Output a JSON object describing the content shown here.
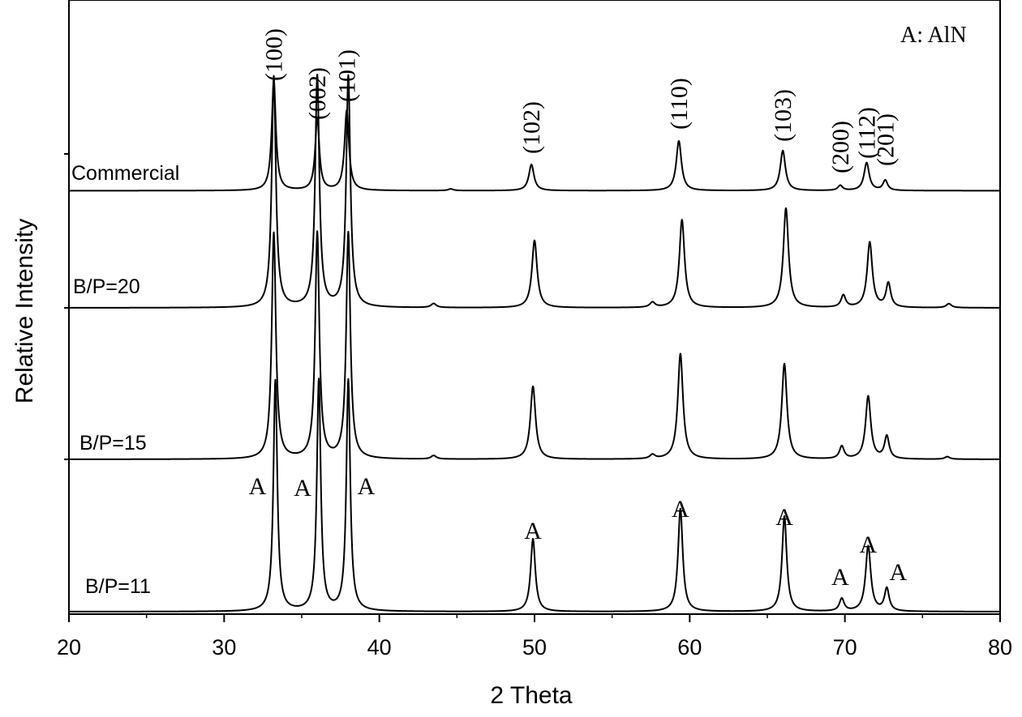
{
  "chart_data": {
    "type": "line",
    "title": "",
    "xlabel": "2 Theta",
    "ylabel": "Relative Intensity",
    "xlim": [
      20,
      80
    ],
    "x_ticks": [
      20,
      30,
      40,
      50,
      60,
      70,
      80
    ],
    "y_ticks_shown": false,
    "grid": false,
    "legend_note": "A: AlN",
    "phase_marker": "A",
    "series": [
      {
        "name": "Commercial",
        "offset": 3,
        "baseline": 0.05,
        "peaks": [
          {
            "x": 33.2,
            "h": 2.6,
            "w": 0.16
          },
          {
            "x": 36.0,
            "h": 1.72,
            "w": 0.16
          },
          {
            "x": 37.9,
            "h": 1.9,
            "w": 0.17
          },
          {
            "x": 44.6,
            "h": 0.04,
            "w": 0.2
          },
          {
            "x": 49.8,
            "h": 0.62,
            "w": 0.2
          },
          {
            "x": 59.3,
            "h": 1.18,
            "w": 0.2
          },
          {
            "x": 66.0,
            "h": 0.95,
            "w": 0.2
          },
          {
            "x": 69.7,
            "h": 0.12,
            "w": 0.18
          },
          {
            "x": 71.4,
            "h": 0.66,
            "w": 0.2
          },
          {
            "x": 72.6,
            "h": 0.24,
            "w": 0.18
          }
        ]
      },
      {
        "name": "B/P=20",
        "offset": 2,
        "baseline": 0.0,
        "peaks": [
          {
            "x": 33.2,
            "h": 4.6,
            "w": 0.16
          },
          {
            "x": 36.0,
            "h": 4.6,
            "w": 0.16
          },
          {
            "x": 38.0,
            "h": 4.6,
            "w": 0.16
          },
          {
            "x": 43.5,
            "h": 0.08,
            "w": 0.2
          },
          {
            "x": 50.0,
            "h": 1.34,
            "w": 0.2
          },
          {
            "x": 57.6,
            "h": 0.1,
            "w": 0.2
          },
          {
            "x": 59.5,
            "h": 1.75,
            "w": 0.2
          },
          {
            "x": 66.2,
            "h": 1.98,
            "w": 0.2
          },
          {
            "x": 69.9,
            "h": 0.24,
            "w": 0.18
          },
          {
            "x": 71.6,
            "h": 1.3,
            "w": 0.2
          },
          {
            "x": 72.8,
            "h": 0.48,
            "w": 0.18
          },
          {
            "x": 76.7,
            "h": 0.08,
            "w": 0.2
          }
        ]
      },
      {
        "name": "B/P=15",
        "offset": 1,
        "baseline": 0.0,
        "peaks": [
          {
            "x": 33.2,
            "h": 4.5,
            "w": 0.16
          },
          {
            "x": 36.0,
            "h": 4.5,
            "w": 0.16
          },
          {
            "x": 38.0,
            "h": 4.5,
            "w": 0.16
          },
          {
            "x": 43.5,
            "h": 0.07,
            "w": 0.2
          },
          {
            "x": 49.9,
            "h": 1.45,
            "w": 0.2
          },
          {
            "x": 57.6,
            "h": 0.08,
            "w": 0.2
          },
          {
            "x": 59.4,
            "h": 2.1,
            "w": 0.2
          },
          {
            "x": 66.1,
            "h": 1.9,
            "w": 0.2
          },
          {
            "x": 69.8,
            "h": 0.25,
            "w": 0.18
          },
          {
            "x": 71.5,
            "h": 1.25,
            "w": 0.2
          },
          {
            "x": 72.7,
            "h": 0.45,
            "w": 0.18
          },
          {
            "x": 76.6,
            "h": 0.05,
            "w": 0.2
          }
        ]
      },
      {
        "name": "B/P=11",
        "offset": 0,
        "baseline": 0.0,
        "peaks": [
          {
            "x": 33.3,
            "h": 4.6,
            "w": 0.15
          },
          {
            "x": 36.1,
            "h": 4.6,
            "w": 0.15
          },
          {
            "x": 38.0,
            "h": 4.6,
            "w": 0.15
          },
          {
            "x": 49.9,
            "h": 1.45,
            "w": 0.18
          },
          {
            "x": 59.4,
            "h": 2.05,
            "w": 0.18
          },
          {
            "x": 66.1,
            "h": 1.9,
            "w": 0.18
          },
          {
            "x": 69.8,
            "h": 0.25,
            "w": 0.18
          },
          {
            "x": 71.5,
            "h": 1.3,
            "w": 0.2
          },
          {
            "x": 72.7,
            "h": 0.45,
            "w": 0.18
          }
        ]
      }
    ],
    "hkl_annotations": [
      {
        "x": 33.2,
        "label": "(100)"
      },
      {
        "x": 36.0,
        "label": "(002)"
      },
      {
        "x": 37.9,
        "label": "(101)"
      },
      {
        "x": 49.8,
        "label": "(102)"
      },
      {
        "x": 59.3,
        "label": "(110)"
      },
      {
        "x": 66.0,
        "label": "(103)"
      },
      {
        "x": 69.7,
        "label": "(200)"
      },
      {
        "x": 71.4,
        "label": "(112)"
      },
      {
        "x": 72.6,
        "label": "(201)"
      }
    ],
    "phase_annotations": [
      {
        "x": 33.3
      },
      {
        "x": 36.1
      },
      {
        "x": 38.0
      },
      {
        "x": 49.9
      },
      {
        "x": 59.4
      },
      {
        "x": 66.1
      },
      {
        "x": 69.8
      },
      {
        "x": 71.5
      },
      {
        "x": 72.7
      }
    ]
  }
}
